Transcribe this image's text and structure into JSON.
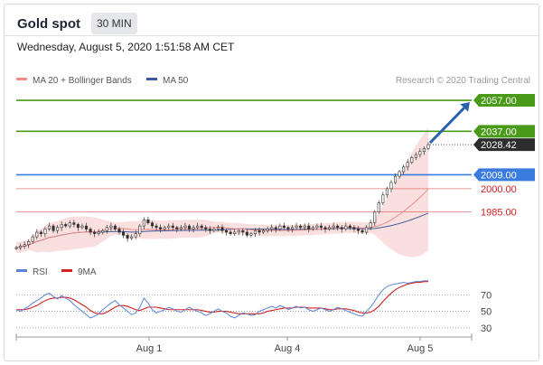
{
  "header": {
    "title": "Gold spot",
    "interval": "30 MIN",
    "datetime": "Wednesday, August 5, 2020 1:51:58 AM CET"
  },
  "credit": "Research © 2020 Trading Central",
  "colors": {
    "green": "#4a9a1a",
    "blue": "#3a7be0",
    "red": "#d22020",
    "dark": "#2d2d2d",
    "band": "#f9d9d9",
    "ma20": "#f08c8c",
    "ma50": "#3f5a9e",
    "rsi": "#5b84d8",
    "rsi_ma": "#d42020"
  },
  "chart_data": [
    {
      "type": "line",
      "name": "price",
      "legend": [
        {
          "name": "MA 20 + Bollinger Bands",
          "color": "#f08c8c"
        },
        {
          "name": "MA 50",
          "color": "#3f5a9e"
        }
      ],
      "x_ticks": [
        "Aug 1",
        "Aug 4",
        "Aug 5"
      ],
      "ylim": [
        1958,
        2064
      ],
      "levels": [
        {
          "value": 2057.0,
          "label": "2057.00",
          "color": "#4a9a1a",
          "style": "solid",
          "tag": "filled"
        },
        {
          "value": 2037.0,
          "label": "2037.00",
          "color": "#4a9a1a",
          "style": "solid",
          "tag": "filled"
        },
        {
          "value": 2028.42,
          "label": "2028.42",
          "color": "#2d2d2d",
          "style": "dotted",
          "tag": "filled"
        },
        {
          "value": 2009.0,
          "label": "2009.00",
          "color": "#3a7be0",
          "style": "solid",
          "tag": "filled"
        },
        {
          "value": 2000.0,
          "label": "2000.00",
          "color": "#d22020",
          "style": "thin",
          "tag": "text"
        },
        {
          "value": 1985.0,
          "label": "1985.00",
          "color": "#d22020",
          "style": "thin",
          "tag": "text"
        }
      ],
      "arrow": {
        "from": 2028.42,
        "to": 2057.0,
        "color": "#2a62b0"
      },
      "close": [
        1962,
        1963,
        1964,
        1966,
        1969,
        1972,
        1971,
        1974,
        1976,
        1973,
        1975,
        1977,
        1976,
        1978,
        1977,
        1975,
        1976,
        1974,
        1972,
        1971,
        1972,
        1973,
        1975,
        1976,
        1974,
        1972,
        1970,
        1968,
        1969,
        1971,
        1976,
        1980,
        1978,
        1976,
        1975,
        1974,
        1975,
        1976,
        1975,
        1974,
        1975,
        1976,
        1974,
        1975,
        1976,
        1975,
        1974,
        1973,
        1974,
        1975,
        1973,
        1972,
        1971,
        1972,
        1973,
        1972,
        1970,
        1971,
        1973,
        1972,
        1973,
        1974,
        1975,
        1974,
        1976,
        1975,
        1974,
        1975,
        1976,
        1975,
        1976,
        1974,
        1975,
        1976,
        1975,
        1974,
        1975,
        1976,
        1975,
        1974,
        1976,
        1975,
        1974,
        1973,
        1972,
        1975,
        1978,
        1985,
        1991,
        1996,
        2000,
        2004,
        2008,
        2011,
        2014,
        2017,
        2020,
        2022,
        2024,
        2026,
        2028.42
      ]
    },
    {
      "type": "line",
      "name": "rsi",
      "legend": [
        {
          "name": "RSI",
          "color": "#5b84d8"
        },
        {
          "name": "9MA",
          "color": "#d42020"
        }
      ],
      "y_ticks": [
        70,
        50,
        30
      ],
      "ylim": [
        20,
        90
      ],
      "rsi": [
        52,
        50,
        53,
        56,
        60,
        63,
        66,
        70,
        72,
        68,
        65,
        69,
        66,
        63,
        58,
        54,
        50,
        46,
        42,
        44,
        47,
        52,
        56,
        60,
        63,
        58,
        54,
        50,
        46,
        48,
        55,
        66,
        60,
        52,
        48,
        50,
        52,
        55,
        53,
        50,
        49,
        52,
        55,
        52,
        50,
        48,
        45,
        47,
        50,
        53,
        50,
        48,
        44,
        42,
        45,
        48,
        47,
        45,
        46,
        50,
        52,
        54,
        56,
        54,
        57,
        55,
        52,
        54,
        56,
        54,
        55,
        52,
        50,
        52,
        54,
        52,
        50,
        52,
        55,
        53,
        51,
        49,
        47,
        45,
        44,
        50,
        55,
        62,
        70,
        76,
        80,
        82,
        83,
        84,
        85,
        84,
        85,
        86,
        86,
        87,
        87
      ],
      "rsi_ma": [
        52,
        52,
        52,
        53,
        55,
        57,
        60,
        63,
        65,
        66,
        66,
        67,
        67,
        66,
        64,
        61,
        58,
        55,
        51,
        48,
        47,
        47,
        49,
        52,
        55,
        57,
        57,
        56,
        54,
        52,
        51,
        53,
        55,
        55,
        55,
        54,
        53,
        52,
        52,
        52,
        52,
        52,
        52,
        52,
        52,
        51,
        50,
        49,
        49,
        50,
        50,
        50,
        49,
        48,
        47,
        47,
        47,
        47,
        47,
        47,
        48,
        50,
        51,
        52,
        53,
        54,
        54,
        54,
        55,
        55,
        55,
        54,
        54,
        54,
        54,
        53,
        52,
        52,
        53,
        53,
        53,
        52,
        51,
        49,
        48,
        48,
        49,
        52,
        56,
        62,
        67,
        72,
        76,
        79,
        81,
        83,
        84,
        85,
        85,
        86,
        86
      ]
    }
  ]
}
